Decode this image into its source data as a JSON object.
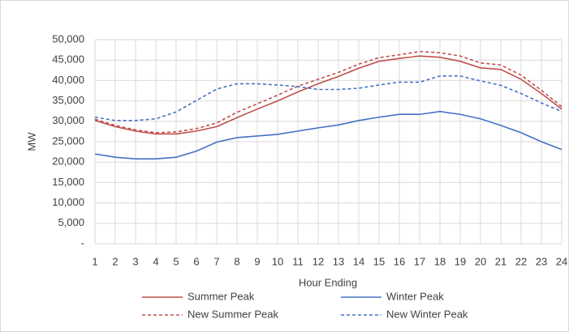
{
  "chart_data": {
    "type": "line",
    "x_label": "Hour Ending",
    "y_label": "MW",
    "categories": [
      1,
      2,
      3,
      4,
      5,
      6,
      7,
      8,
      9,
      10,
      11,
      12,
      13,
      14,
      15,
      16,
      17,
      18,
      19,
      20,
      21,
      22,
      23,
      24
    ],
    "ylim": [
      0,
      50000
    ],
    "yticks": [
      {
        "value": 0,
        "label": "-"
      },
      {
        "value": 5000,
        "label": "5,000"
      },
      {
        "value": 10000,
        "label": "10,000"
      },
      {
        "value": 15000,
        "label": "15,000"
      },
      {
        "value": 20000,
        "label": "20,000"
      },
      {
        "value": 25000,
        "label": "25,000"
      },
      {
        "value": 30000,
        "label": "30,000"
      },
      {
        "value": 35000,
        "label": "35,000"
      },
      {
        "value": 40000,
        "label": "40,000"
      },
      {
        "value": 45000,
        "label": "45,000"
      },
      {
        "value": 50000,
        "label": "50,000"
      }
    ],
    "grid": true,
    "series": [
      {
        "name": "Summer Peak",
        "color": "#c0504d",
        "dashed": false,
        "values": [
          30200,
          28700,
          27600,
          26900,
          26900,
          27600,
          28700,
          30900,
          33000,
          35000,
          37200,
          39200,
          41000,
          43000,
          44700,
          45400,
          46000,
          45700,
          44700,
          43100,
          42700,
          40300,
          36800,
          33000
        ]
      },
      {
        "name": "Winter Peak",
        "color": "#4472c4",
        "dashed": false,
        "values": [
          22000,
          21200,
          20800,
          20800,
          21200,
          22700,
          24900,
          26000,
          26400,
          26800,
          27600,
          28400,
          29100,
          30200,
          31000,
          31700,
          31700,
          32400,
          31700,
          30600,
          29000,
          27200,
          25000,
          23100
        ]
      },
      {
        "name": "New Summer Peak",
        "color": "#c0504d",
        "dashed": true,
        "values": [
          30500,
          29000,
          27900,
          27200,
          27400,
          28200,
          29600,
          32200,
          34300,
          36400,
          38600,
          40300,
          42000,
          44000,
          45600,
          46300,
          47100,
          46800,
          46000,
          44300,
          43800,
          41300,
          37600,
          33600
        ]
      },
      {
        "name": "New Winter Peak",
        "color": "#4472c4",
        "dashed": true,
        "values": [
          31000,
          30200,
          30200,
          30600,
          32300,
          35100,
          37900,
          39200,
          39200,
          38900,
          38500,
          37800,
          37800,
          38100,
          38900,
          39600,
          39600,
          41100,
          41100,
          39900,
          38800,
          36800,
          34500,
          32400
        ]
      }
    ]
  }
}
